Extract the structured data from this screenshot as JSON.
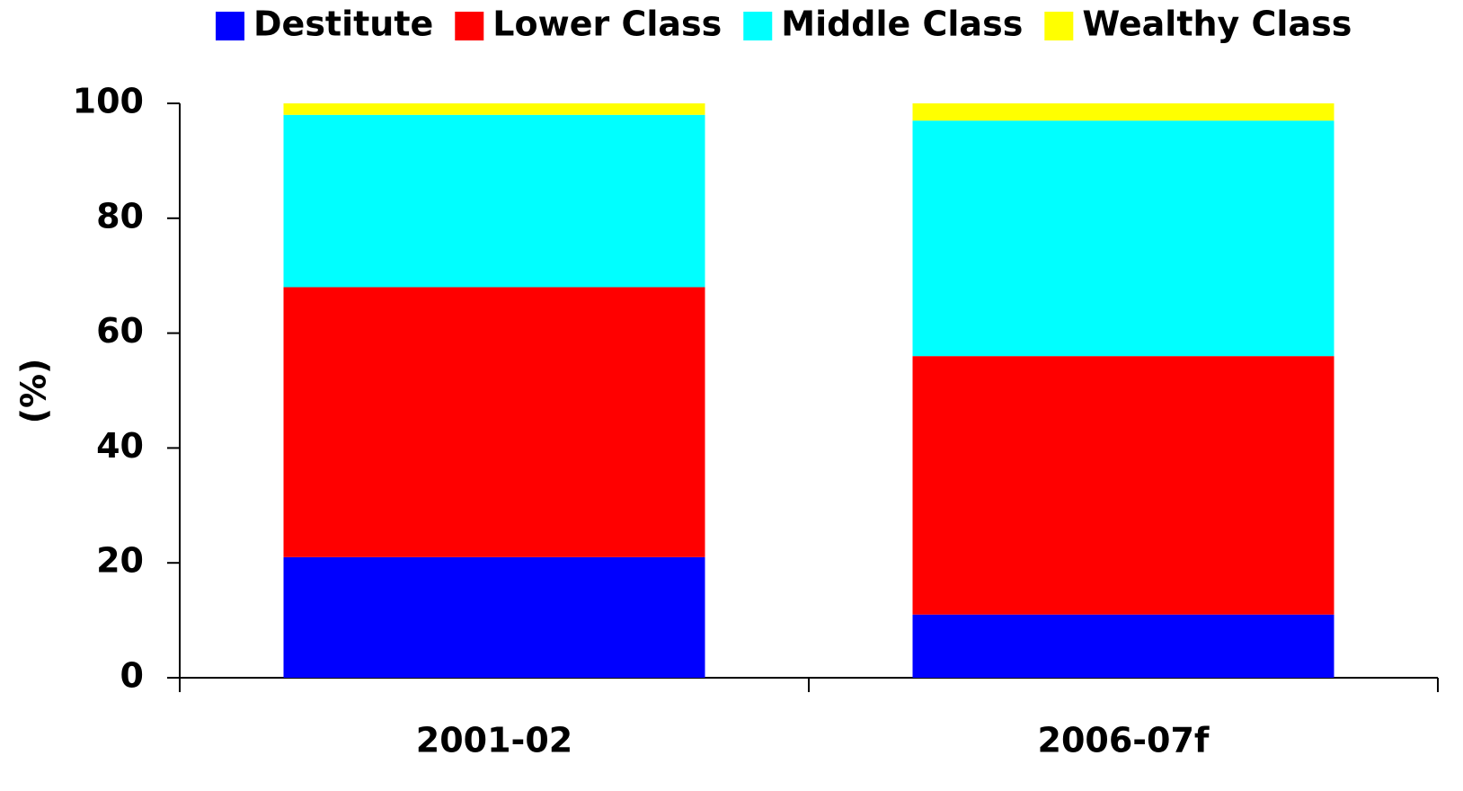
{
  "chart_data": {
    "type": "stacked_bar",
    "y_label": "(%)",
    "categories": [
      "2001-02",
      "2006-07f"
    ],
    "series": [
      {
        "name": "Destitute",
        "color": "#0000ff",
        "values": [
          21,
          11
        ]
      },
      {
        "name": "Lower Class",
        "color": "#ff0000",
        "values": [
          47,
          45
        ]
      },
      {
        "name": "Middle Class",
        "color": "#00ffff",
        "values": [
          30,
          41
        ]
      },
      {
        "name": "Wealthy Class",
        "color": "#ffff00",
        "values": [
          2,
          3
        ]
      }
    ],
    "ylim": [
      0,
      100
    ],
    "yticks": [
      0,
      20,
      40,
      60,
      80,
      100
    ],
    "grid": false,
    "legend": "top"
  }
}
